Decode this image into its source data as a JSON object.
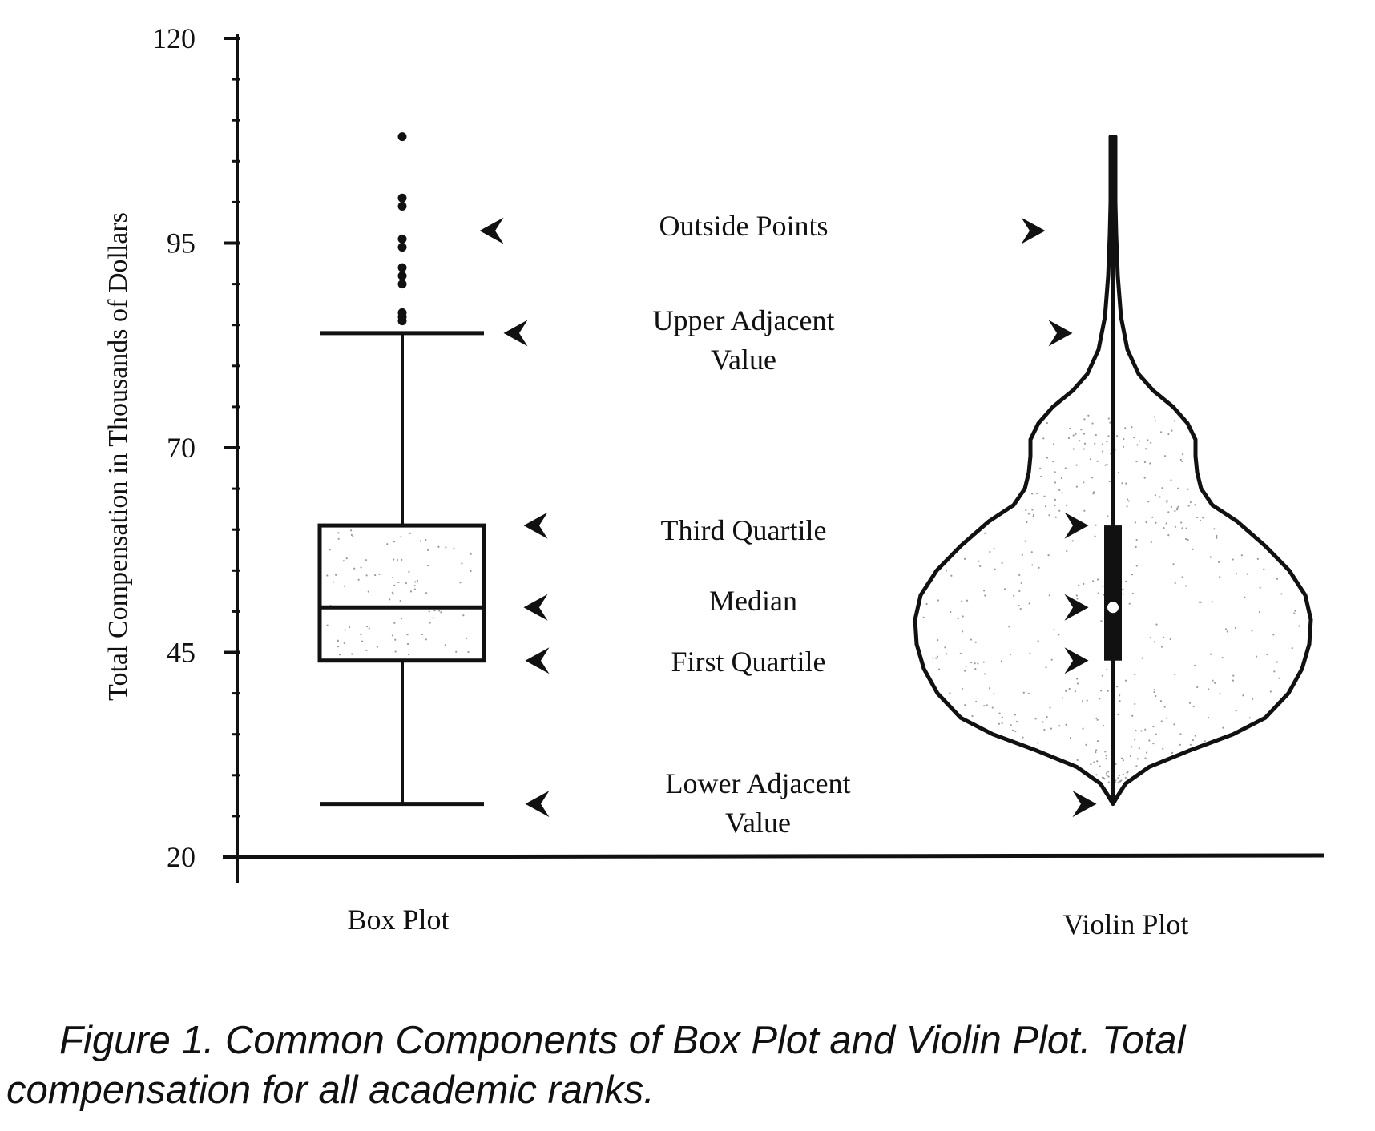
{
  "chart_data": {
    "type": "box",
    "ylabel": "Total Compensation in Thousands of Dollars",
    "ylim": [
      20,
      120
    ],
    "yticks": [
      "20",
      "45",
      "70",
      "95",
      "120"
    ],
    "grid": false,
    "categories": [
      "Box Plot",
      "Violin Plot"
    ],
    "series": [
      {
        "name": "Box Plot",
        "lower_adjacent": 26.5,
        "first_quartile": 44,
        "median": 50.5,
        "third_quartile": 60.5,
        "upper_adjacent": 84,
        "outside_points": [
          85.5,
          86,
          86.5,
          90,
          91,
          92,
          94.5,
          95.5,
          99.5,
          100.5,
          108
        ]
      },
      {
        "name": "Violin Plot",
        "lower_adjacent": 26.5,
        "first_quartile": 44,
        "median": 50.5,
        "third_quartile": 60.5,
        "upper_adjacent": 84,
        "max": 108
      }
    ],
    "annotations": [
      {
        "lines": [
          "Outside Points"
        ]
      },
      {
        "lines": [
          "Upper Adjacent",
          "Value"
        ]
      },
      {
        "lines": [
          "Third Quartile"
        ]
      },
      {
        "lines": [
          "Median"
        ]
      },
      {
        "lines": [
          "First Quartile"
        ]
      },
      {
        "lines": [
          "Lower Adjacent",
          "Value"
        ]
      }
    ]
  },
  "caption": {
    "line1": "Figure 1.  Common Components of Box Plot and Violin Plot. Total",
    "line2": "compensation for all academic ranks."
  }
}
